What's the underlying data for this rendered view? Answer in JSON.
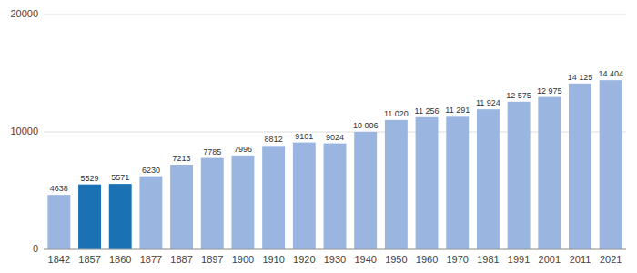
{
  "chart_data": {
    "type": "bar",
    "categories": [
      "1842",
      "1857",
      "1860",
      "1877",
      "1887",
      "1897",
      "1900",
      "1910",
      "1920",
      "1930",
      "1940",
      "1950",
      "1960",
      "1970",
      "1981",
      "1991",
      "2001",
      "2011",
      "2021"
    ],
    "values": [
      4638,
      5529,
      5571,
      6230,
      7213,
      7785,
      7996,
      8812,
      9101,
      9024,
      10006,
      11020,
      11256,
      11291,
      11924,
      12575,
      12975,
      14125,
      14404
    ],
    "value_labels": [
      "4638",
      "5529",
      "5571",
      "6230",
      "7213",
      "7785",
      "7996",
      "8812",
      "9101",
      "9024",
      "10 006",
      "11 020",
      "11 256",
      "11 291",
      "11 924",
      "12 575",
      "12 975",
      "14 125",
      "14 404"
    ],
    "colors": [
      "#9ab5e0",
      "#1a72b5",
      "#1a72b5",
      "#9ab5e0",
      "#9ab5e0",
      "#9ab5e0",
      "#9ab5e0",
      "#9ab5e0",
      "#9ab5e0",
      "#9ab5e0",
      "#9ab5e0",
      "#9ab5e0",
      "#9ab5e0",
      "#9ab5e0",
      "#9ab5e0",
      "#9ab5e0",
      "#9ab5e0",
      "#9ab5e0",
      "#9ab5e0"
    ],
    "ylim": [
      0,
      20000
    ],
    "yticks": [
      0,
      10000,
      20000
    ],
    "grid": true,
    "data_labels": true
  }
}
